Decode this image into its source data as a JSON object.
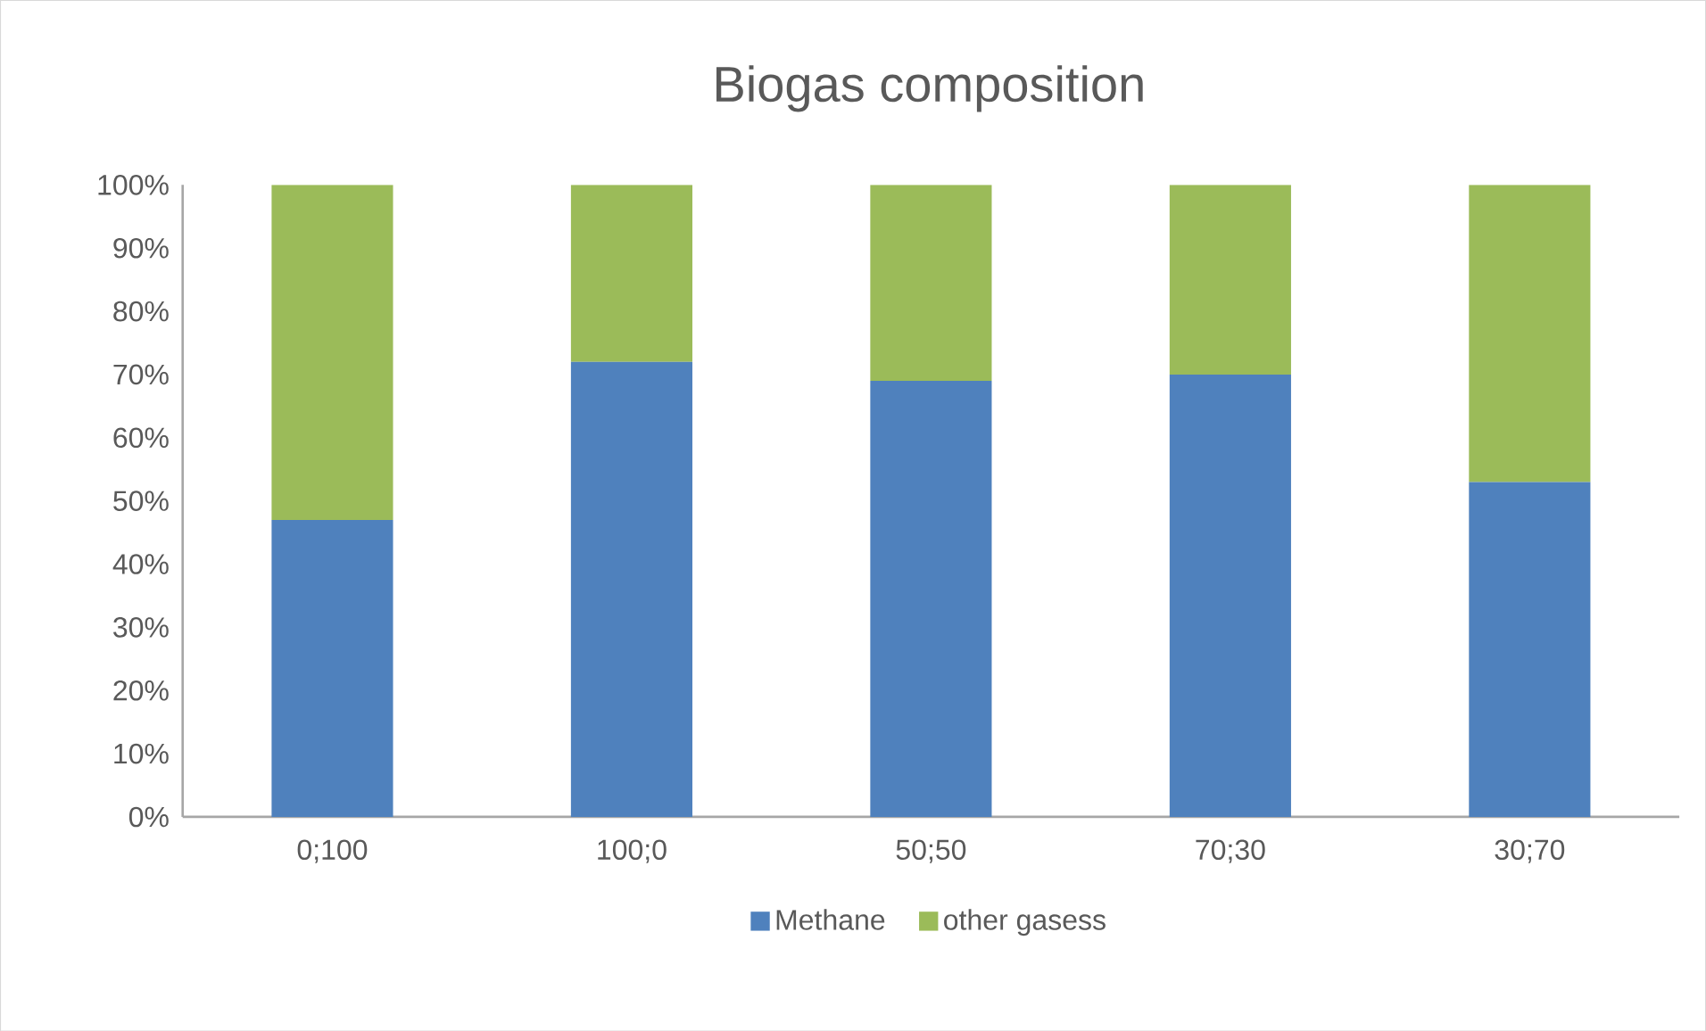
{
  "chart_data": {
    "type": "bar",
    "title": "Biogas composition",
    "stacked": true,
    "categories": [
      "0;100",
      "100;0",
      "50;50",
      "70;30",
      "30;70"
    ],
    "series": [
      {
        "name": "Methane",
        "color": "#4f81bd",
        "values": [
          47,
          72,
          69,
          70,
          53
        ]
      },
      {
        "name": "other gasess",
        "color": "#9bbb59",
        "values": [
          53,
          28,
          31,
          30,
          47
        ]
      }
    ],
    "ylim": [
      0,
      100
    ],
    "yticks": [
      {
        "value": 0,
        "label": "0%"
      },
      {
        "value": 10,
        "label": "10%"
      },
      {
        "value": 20,
        "label": "20%"
      },
      {
        "value": 30,
        "label": "30%"
      },
      {
        "value": 40,
        "label": "40%"
      },
      {
        "value": 50,
        "label": "50%"
      },
      {
        "value": 60,
        "label": "60%"
      },
      {
        "value": 70,
        "label": "70%"
      },
      {
        "value": 80,
        "label": "80%"
      },
      {
        "value": 90,
        "label": "90%"
      },
      {
        "value": 100,
        "label": "100%"
      }
    ],
    "grid": false,
    "legend": "bottom"
  }
}
